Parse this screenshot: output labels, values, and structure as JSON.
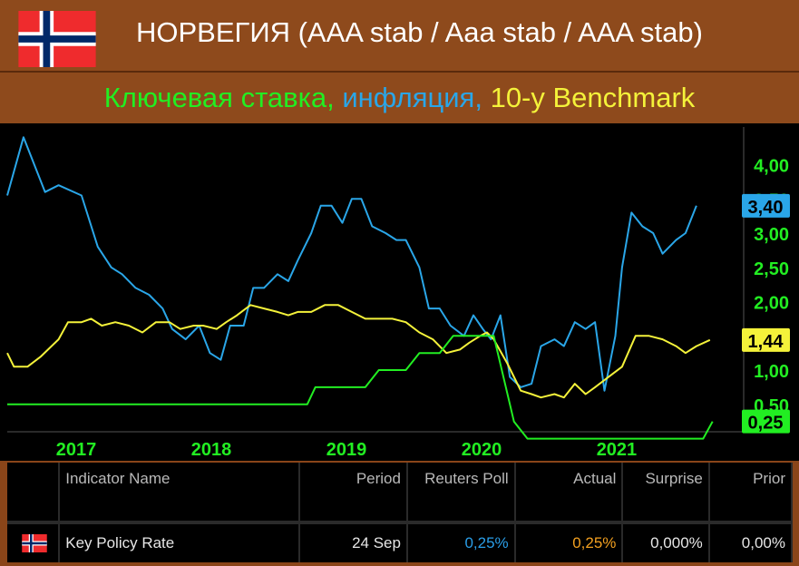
{
  "header": {
    "title": "НОРВЕГИЯ (AAA stab / Aaa stab / AAA stab)",
    "subtitle_parts": [
      {
        "text": "Ключевая ставка, ",
        "color": "#22ee22"
      },
      {
        "text": "инфляция",
        "color": "#2aa6e8"
      },
      {
        "text": ", ",
        "color": "#2aa6e8"
      },
      {
        "text": "10-y Benchmark",
        "color": "#f4f23a"
      }
    ],
    "flag_icon": "norway-flag-icon"
  },
  "chart_data": {
    "type": "line",
    "title": "",
    "xlabel": "",
    "ylabel": "",
    "x_ticks": [
      "2017",
      "2018",
      "2019",
      "2020",
      "2021"
    ],
    "x_range": [
      2016.5,
      2021.95
    ],
    "y_ticks": [
      "4,00",
      "3,50",
      "3,00",
      "2,50",
      "2,00",
      "1,50",
      "1,00",
      "0,50"
    ],
    "ylim": [
      0.1,
      4.55
    ],
    "y_axis_color": "#22ee22",
    "grid": false,
    "series": [
      {
        "color": "#2aa6e8",
        "last_label": "3,40",
        "points": [
          [
            2016.5,
            3.55
          ],
          [
            2016.62,
            4.4
          ],
          [
            2016.78,
            3.6
          ],
          [
            2016.88,
            3.7
          ],
          [
            2017.05,
            3.55
          ],
          [
            2017.17,
            2.8
          ],
          [
            2017.27,
            2.5
          ],
          [
            2017.35,
            2.4
          ],
          [
            2017.45,
            2.2
          ],
          [
            2017.55,
            2.1
          ],
          [
            2017.65,
            1.9
          ],
          [
            2017.72,
            1.6
          ],
          [
            2017.82,
            1.45
          ],
          [
            2017.92,
            1.65
          ],
          [
            2018.0,
            1.25
          ],
          [
            2018.08,
            1.15
          ],
          [
            2018.15,
            1.65
          ],
          [
            2018.25,
            1.65
          ],
          [
            2018.32,
            2.2
          ],
          [
            2018.4,
            2.2
          ],
          [
            2018.5,
            2.4
          ],
          [
            2018.58,
            2.3
          ],
          [
            2018.65,
            2.6
          ],
          [
            2018.75,
            3.0
          ],
          [
            2018.82,
            3.4
          ],
          [
            2018.9,
            3.4
          ],
          [
            2018.98,
            3.15
          ],
          [
            2019.05,
            3.5
          ],
          [
            2019.12,
            3.5
          ],
          [
            2019.2,
            3.1
          ],
          [
            2019.3,
            3.0
          ],
          [
            2019.38,
            2.9
          ],
          [
            2019.45,
            2.9
          ],
          [
            2019.55,
            2.5
          ],
          [
            2019.62,
            1.9
          ],
          [
            2019.7,
            1.9
          ],
          [
            2019.78,
            1.65
          ],
          [
            2019.88,
            1.5
          ],
          [
            2019.95,
            1.8
          ],
          [
            2020.02,
            1.6
          ],
          [
            2020.08,
            1.45
          ],
          [
            2020.15,
            1.8
          ],
          [
            2020.22,
            0.9
          ],
          [
            2020.3,
            0.75
          ],
          [
            2020.38,
            0.8
          ],
          [
            2020.45,
            1.35
          ],
          [
            2020.55,
            1.45
          ],
          [
            2020.62,
            1.35
          ],
          [
            2020.7,
            1.7
          ],
          [
            2020.78,
            1.6
          ],
          [
            2020.85,
            1.7
          ],
          [
            2020.92,
            0.7
          ],
          [
            2021.0,
            1.5
          ],
          [
            2021.05,
            2.5
          ],
          [
            2021.12,
            3.3
          ],
          [
            2021.2,
            3.1
          ],
          [
            2021.28,
            3.0
          ],
          [
            2021.35,
            2.7
          ],
          [
            2021.45,
            2.9
          ],
          [
            2021.52,
            3.0
          ],
          [
            2021.6,
            3.4
          ]
        ]
      },
      {
        "color": "#f4f23a",
        "last_label": "1,44",
        "points": [
          [
            2016.5,
            1.25
          ],
          [
            2016.55,
            1.05
          ],
          [
            2016.65,
            1.05
          ],
          [
            2016.75,
            1.2
          ],
          [
            2016.88,
            1.45
          ],
          [
            2016.95,
            1.7
          ],
          [
            2017.05,
            1.7
          ],
          [
            2017.12,
            1.75
          ],
          [
            2017.2,
            1.65
          ],
          [
            2017.3,
            1.7
          ],
          [
            2017.4,
            1.65
          ],
          [
            2017.5,
            1.55
          ],
          [
            2017.6,
            1.7
          ],
          [
            2017.7,
            1.7
          ],
          [
            2017.78,
            1.6
          ],
          [
            2017.88,
            1.65
          ],
          [
            2017.95,
            1.65
          ],
          [
            2018.05,
            1.6
          ],
          [
            2018.12,
            1.7
          ],
          [
            2018.2,
            1.8
          ],
          [
            2018.3,
            1.95
          ],
          [
            2018.4,
            1.9
          ],
          [
            2018.5,
            1.85
          ],
          [
            2018.58,
            1.8
          ],
          [
            2018.65,
            1.85
          ],
          [
            2018.75,
            1.85
          ],
          [
            2018.85,
            1.95
          ],
          [
            2018.95,
            1.95
          ],
          [
            2019.05,
            1.85
          ],
          [
            2019.15,
            1.75
          ],
          [
            2019.25,
            1.75
          ],
          [
            2019.35,
            1.75
          ],
          [
            2019.45,
            1.7
          ],
          [
            2019.55,
            1.55
          ],
          [
            2019.65,
            1.45
          ],
          [
            2019.75,
            1.25
          ],
          [
            2019.85,
            1.3
          ],
          [
            2019.92,
            1.4
          ],
          [
            2020.0,
            1.5
          ],
          [
            2020.05,
            1.55
          ],
          [
            2020.1,
            1.45
          ],
          [
            2020.2,
            1.1
          ],
          [
            2020.3,
            0.7
          ],
          [
            2020.38,
            0.65
          ],
          [
            2020.45,
            0.6
          ],
          [
            2020.55,
            0.65
          ],
          [
            2020.62,
            0.6
          ],
          [
            2020.7,
            0.8
          ],
          [
            2020.78,
            0.65
          ],
          [
            2020.85,
            0.75
          ],
          [
            2020.95,
            0.9
          ],
          [
            2021.05,
            1.05
          ],
          [
            2021.15,
            1.5
          ],
          [
            2021.25,
            1.5
          ],
          [
            2021.35,
            1.45
          ],
          [
            2021.45,
            1.35
          ],
          [
            2021.52,
            1.25
          ],
          [
            2021.6,
            1.35
          ],
          [
            2021.7,
            1.44
          ]
        ]
      },
      {
        "color": "#22ee22",
        "last_label": "0,25",
        "points": [
          [
            2016.5,
            0.5
          ],
          [
            2018.72,
            0.5
          ],
          [
            2018.78,
            0.75
          ],
          [
            2019.15,
            0.75
          ],
          [
            2019.25,
            1.0
          ],
          [
            2019.45,
            1.0
          ],
          [
            2019.55,
            1.25
          ],
          [
            2019.7,
            1.25
          ],
          [
            2019.8,
            1.5
          ],
          [
            2020.1,
            1.5
          ],
          [
            2020.25,
            0.25
          ],
          [
            2020.35,
            0.0
          ],
          [
            2021.65,
            0.0
          ],
          [
            2021.72,
            0.25
          ]
        ]
      }
    ]
  },
  "table": {
    "columns": [
      "Indicator Name",
      "Period",
      "Reuters Poll",
      "Actual",
      "Surprise",
      "Prior"
    ],
    "rows": [
      {
        "flag": "norway-flag-icon",
        "indicator": "Key Policy Rate",
        "period": "24 Sep",
        "reuters_poll": "0,25%",
        "actual": "0,25%",
        "surprise": "0,000%",
        "prior": "0,00%"
      }
    ]
  }
}
